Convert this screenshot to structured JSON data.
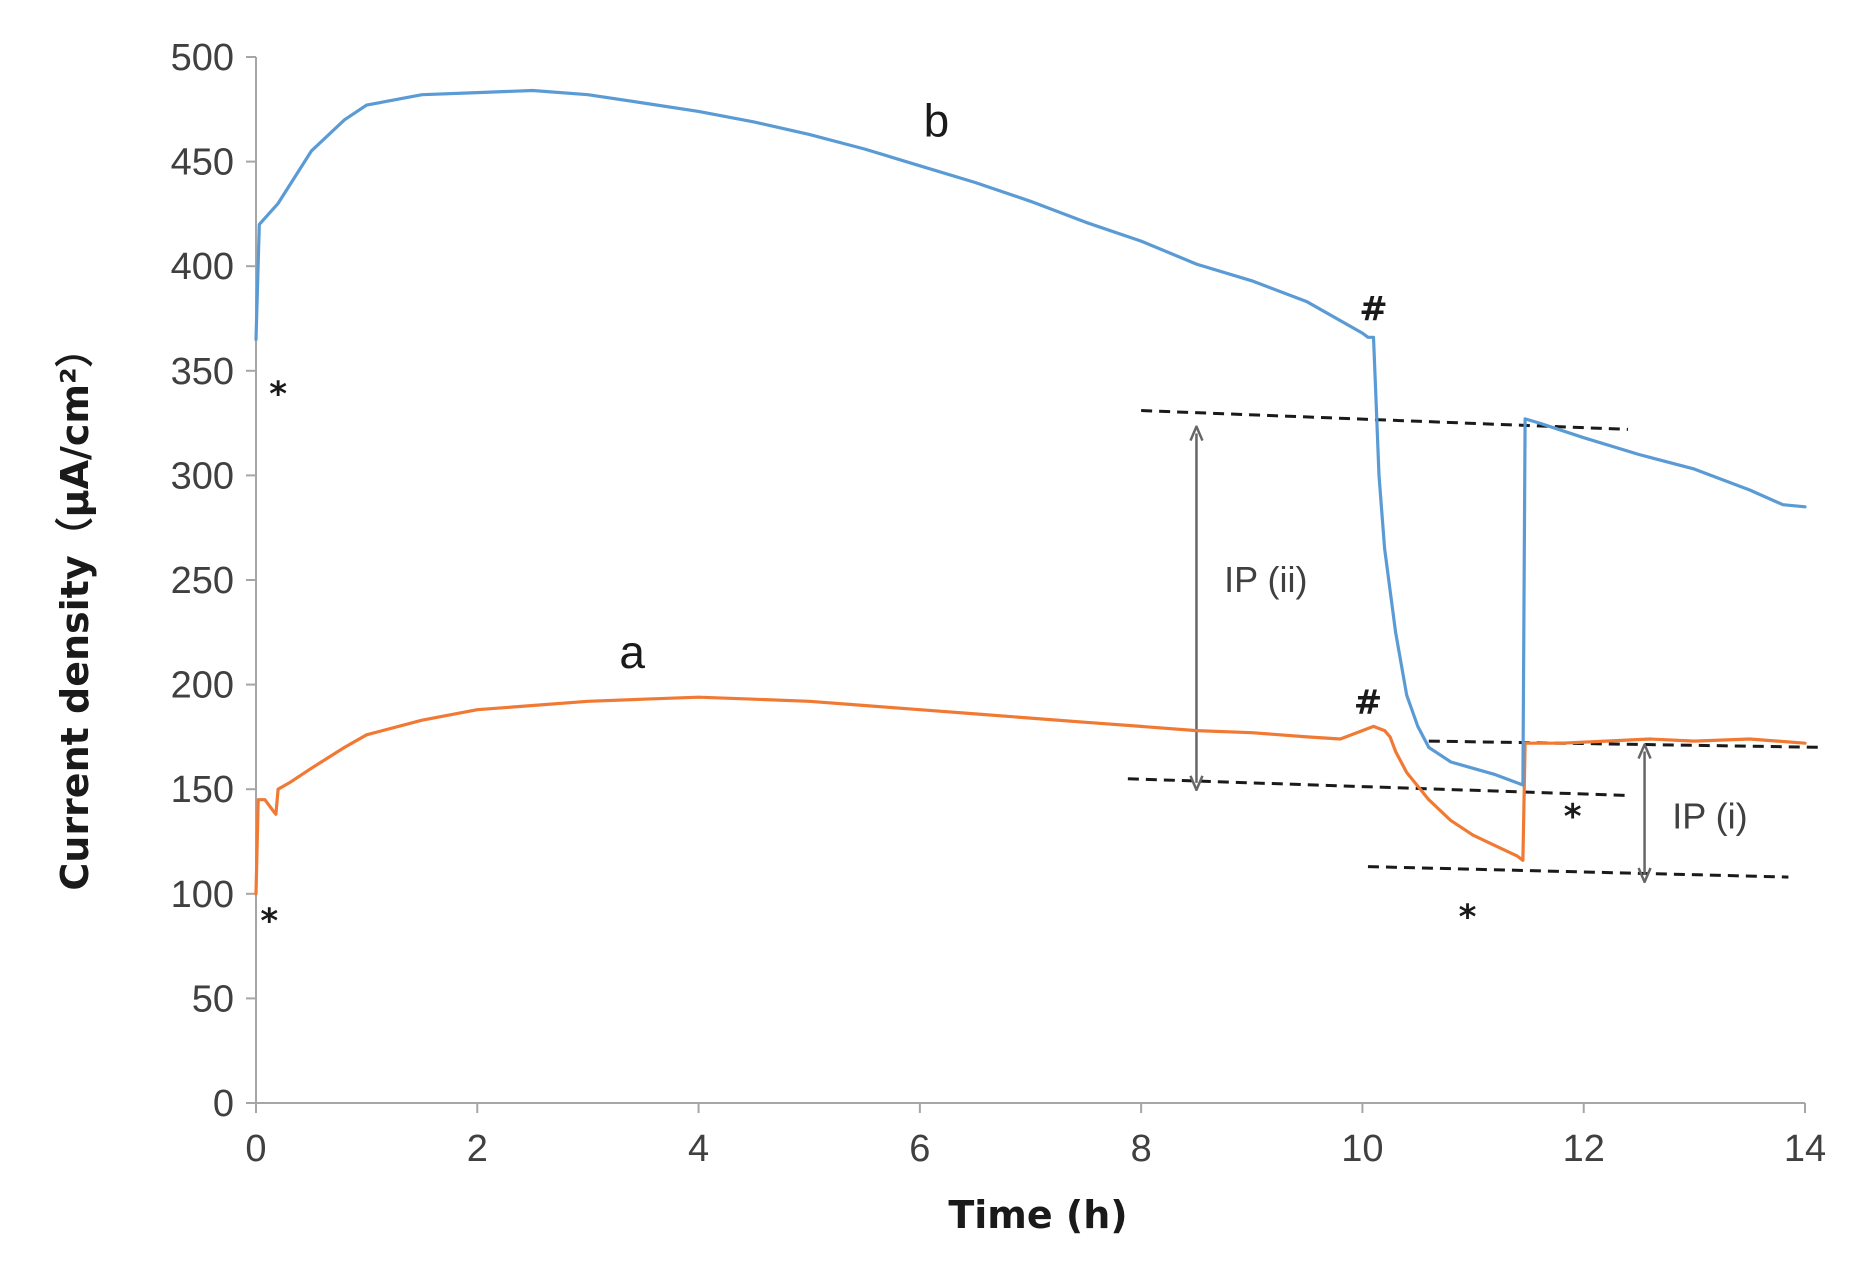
{
  "chart_data": {
    "type": "line",
    "xlabel": "Time (h)",
    "ylabel": "Current density（μA/cm²）",
    "xlim": [
      0,
      14
    ],
    "ylim": [
      0,
      500
    ],
    "xticks": [
      0,
      2,
      4,
      6,
      8,
      10,
      12,
      14
    ],
    "yticks": [
      0,
      50,
      100,
      150,
      200,
      250,
      300,
      350,
      400,
      450,
      500
    ],
    "grid": false,
    "legend": "none",
    "colors": {
      "a": "#f07a33",
      "b": "#5b9bd5",
      "dashed": "#1a1a1a",
      "arrow": "#666666",
      "axis": "#a6a6a6"
    },
    "series": [
      {
        "name": "a",
        "color": "#f07a33",
        "points": [
          [
            0,
            100
          ],
          [
            0.02,
            145
          ],
          [
            0.08,
            145
          ],
          [
            0.15,
            140
          ],
          [
            0.18,
            138
          ],
          [
            0.2,
            150
          ],
          [
            0.3,
            153
          ],
          [
            0.5,
            160
          ],
          [
            0.8,
            170
          ],
          [
            1.0,
            176
          ],
          [
            1.5,
            183
          ],
          [
            2.0,
            188
          ],
          [
            2.5,
            190
          ],
          [
            3.0,
            192
          ],
          [
            3.5,
            193
          ],
          [
            4.0,
            194
          ],
          [
            4.5,
            193
          ],
          [
            5.0,
            192
          ],
          [
            5.5,
            190
          ],
          [
            6.0,
            188
          ],
          [
            6.5,
            186
          ],
          [
            7.0,
            184
          ],
          [
            7.5,
            182
          ],
          [
            8.0,
            180
          ],
          [
            8.5,
            178
          ],
          [
            9.0,
            177
          ],
          [
            9.5,
            175
          ],
          [
            9.8,
            174
          ],
          [
            10.0,
            178
          ],
          [
            10.1,
            180
          ],
          [
            10.2,
            178
          ],
          [
            10.25,
            175
          ],
          [
            10.3,
            168
          ],
          [
            10.4,
            158
          ],
          [
            10.6,
            145
          ],
          [
            10.8,
            135
          ],
          [
            11.0,
            128
          ],
          [
            11.2,
            123
          ],
          [
            11.4,
            118
          ],
          [
            11.45,
            116
          ],
          [
            11.47,
            172
          ],
          [
            11.8,
            172
          ],
          [
            12.2,
            173
          ],
          [
            12.6,
            174
          ],
          [
            13.0,
            173
          ],
          [
            13.5,
            174
          ],
          [
            14.0,
            172
          ]
        ]
      },
      {
        "name": "b",
        "color": "#5b9bd5",
        "points": [
          [
            0,
            365
          ],
          [
            0.03,
            420
          ],
          [
            0.2,
            430
          ],
          [
            0.5,
            455
          ],
          [
            0.8,
            470
          ],
          [
            1.0,
            477
          ],
          [
            1.5,
            482
          ],
          [
            2.0,
            483
          ],
          [
            2.5,
            484
          ],
          [
            3.0,
            482
          ],
          [
            3.5,
            478
          ],
          [
            4.0,
            474
          ],
          [
            4.5,
            469
          ],
          [
            5.0,
            463
          ],
          [
            5.5,
            456
          ],
          [
            6.0,
            448
          ],
          [
            6.5,
            440
          ],
          [
            7.0,
            431
          ],
          [
            7.5,
            421
          ],
          [
            8.0,
            412
          ],
          [
            8.5,
            401
          ],
          [
            9.0,
            393
          ],
          [
            9.5,
            383
          ],
          [
            10.0,
            368
          ],
          [
            10.05,
            366
          ],
          [
            10.1,
            366
          ],
          [
            10.12,
            340
          ],
          [
            10.15,
            300
          ],
          [
            10.2,
            265
          ],
          [
            10.3,
            225
          ],
          [
            10.4,
            195
          ],
          [
            10.5,
            180
          ],
          [
            10.6,
            170
          ],
          [
            10.8,
            163
          ],
          [
            11.0,
            160
          ],
          [
            11.2,
            157
          ],
          [
            11.4,
            153
          ],
          [
            11.45,
            152
          ],
          [
            11.47,
            327
          ],
          [
            11.6,
            325
          ],
          [
            12.0,
            318
          ],
          [
            12.5,
            310
          ],
          [
            13.0,
            303
          ],
          [
            13.5,
            293
          ],
          [
            13.8,
            286
          ],
          [
            14.0,
            285
          ]
        ]
      }
    ],
    "annotations": {
      "series_labels": [
        {
          "text": "a",
          "x": 3.4,
          "y": 208
        },
        {
          "text": "b",
          "x": 6.15,
          "y": 462
        }
      ],
      "marks": [
        {
          "text": "*",
          "x": 0.2,
          "y": 342
        },
        {
          "text": "*",
          "x": 0.12,
          "y": 90
        },
        {
          "text": "#",
          "x": 10.1,
          "y": 374
        },
        {
          "text": "#",
          "x": 10.05,
          "y": 186
        },
        {
          "text": "*",
          "x": 11.9,
          "y": 140
        },
        {
          "text": "*",
          "x": 10.95,
          "y": 92
        }
      ],
      "dashed_lines": [
        {
          "x1": 8.0,
          "y1": 331,
          "x2": 12.4,
          "y2": 322
        },
        {
          "x1": 7.88,
          "y1": 155,
          "x2": 12.4,
          "y2": 147
        },
        {
          "x1": 10.6,
          "y1": 173,
          "x2": 14.15,
          "y2": 170
        },
        {
          "x1": 10.05,
          "y1": 113,
          "x2": 13.85,
          "y2": 108
        }
      ],
      "arrows": [
        {
          "label": "IP (ii)",
          "x": 8.5,
          "y_top": 320,
          "y_bottom": 153,
          "label_x": 8.75,
          "label_y": 250
        },
        {
          "label": "IP (i)",
          "x": 12.55,
          "y_top": 168,
          "y_bottom": 109,
          "label_x": 12.8,
          "label_y": 137
        }
      ]
    }
  }
}
